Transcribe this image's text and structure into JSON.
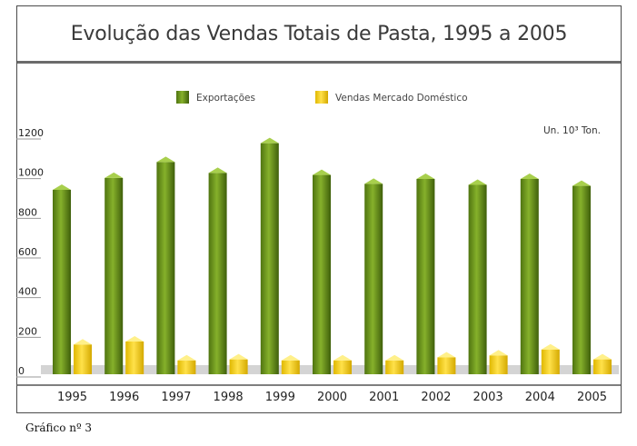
{
  "title": "Evolução das Vendas Totais de Pasta, 1995 a 2005",
  "caption": "Gráfico nº 3",
  "chart_data": {
    "type": "bar",
    "title": "Evolução das Vendas Totais de Pasta, 1995 a 2005",
    "unit_label": "Un. 10³ Ton.",
    "categories": [
      "1995",
      "1996",
      "1997",
      "1998",
      "1999",
      "2000",
      "2001",
      "2002",
      "2003",
      "2004",
      "2005"
    ],
    "series": [
      {
        "name": "Exportações",
        "color": "#6f9a1d",
        "values": [
          930,
          990,
          1070,
          1015,
          1165,
          1005,
          960,
          985,
          955,
          985,
          950
        ]
      },
      {
        "name": "Vendas Mercado Doméstico",
        "color": "#f2d000",
        "values": [
          150,
          165,
          70,
          75,
          70,
          70,
          70,
          85,
          95,
          125,
          75
        ]
      }
    ],
    "yticks": [
      "1200",
      "1000",
      "800",
      "600",
      "400",
      "200",
      "0"
    ],
    "ylim": [
      0,
      1200
    ],
    "grid": false,
    "legend_position": "top"
  }
}
